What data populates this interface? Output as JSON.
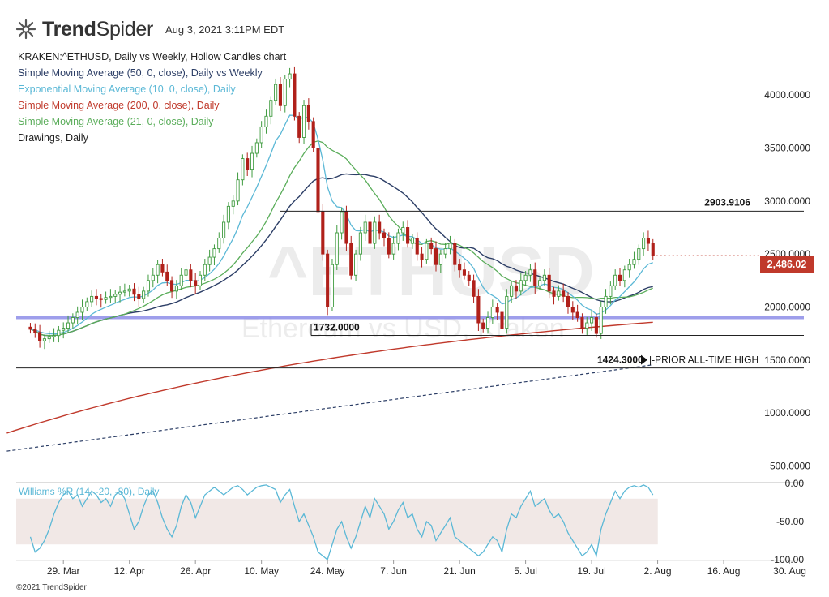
{
  "header": {
    "brand_bold": "Trend",
    "brand_light": "Spider",
    "timestamp": "Aug 3, 2021 3:11PM EDT"
  },
  "legend": [
    {
      "text": "KRAKEN:^ETHUSD, Daily vs Weekly, Hollow Candles chart",
      "color": "#222222"
    },
    {
      "text": "Simple Moving Average (50, 0, close), Daily vs Weekly",
      "color": "#2c3e66"
    },
    {
      "text": "Exponential Moving Average (10, 0, close), Daily",
      "color": "#5bb8d6"
    },
    {
      "text": "Simple Moving Average (200, 0, close), Daily",
      "color": "#c0392b"
    },
    {
      "text": "Simple Moving Average (21, 0, close), Daily",
      "color": "#5aad5a"
    },
    {
      "text": "Drawings, Daily",
      "color": "#222222"
    }
  ],
  "watermark": {
    "symbol": "^ETHUSD",
    "name": "Ethereum vs USD, Kraken"
  },
  "price_badge": "2,486.02",
  "oscillator_label": "Williams %R (14, -20, -80), Daily",
  "copyright": "©2021 TrendSpider",
  "colors": {
    "sma50": "#2c3e66",
    "ema10": "#5bb8d6",
    "sma200": "#c0392b",
    "sma21": "#5aad5a",
    "up": "#3f9b3f",
    "down": "#b0201a",
    "support": "#8e8ee8",
    "willr": "#5bb8d6"
  },
  "chart_data": {
    "type": "candlestick",
    "x_ticks": [
      "29. Mar",
      "12. Apr",
      "26. Apr",
      "10. May",
      "24. May",
      "7. Jun",
      "21. Jun",
      "5. Jul",
      "19. Jul",
      "2. Aug",
      "16. Aug",
      "30. Aug"
    ],
    "y_ticks": [
      "500.0000",
      "1000.0000",
      "1500.0000",
      "2000.0000",
      "2500.0000",
      "3000.0000",
      "3500.0000",
      "4000.0000"
    ],
    "y_tick_values": [
      500,
      1000,
      1500,
      2000,
      2500,
      3000,
      3500,
      4000
    ],
    "ylim": [
      350,
      4300
    ],
    "x_range": [
      "2021-03-19",
      "2021-09-02"
    ],
    "close": [
      1790,
      1760,
      1680,
      1700,
      1720,
      1730,
      1780,
      1800,
      1850,
      1900,
      1950,
      2000,
      2050,
      2100,
      2080,
      2070,
      2090,
      2100,
      2120,
      2140,
      2150,
      2170,
      2120,
      2080,
      2150,
      2250,
      2300,
      2400,
      2330,
      2250,
      2150,
      2200,
      2300,
      2350,
      2250,
      2200,
      2300,
      2400,
      2470,
      2550,
      2650,
      2800,
      2950,
      3000,
      3200,
      3400,
      3300,
      3450,
      3550,
      3700,
      3800,
      3950,
      4100,
      3900,
      4150,
      4200,
      3800,
      3600,
      3900,
      3750,
      3500,
      2900,
      2500,
      2000,
      2400,
      2700,
      2900,
      2600,
      2300,
      2500,
      2700,
      2800,
      2600,
      2800,
      2700,
      2650,
      2500,
      2600,
      2700,
      2750,
      2600,
      2650,
      2500,
      2450,
      2600,
      2550,
      2400,
      2500,
      2550,
      2600,
      2400,
      2350,
      2300,
      2250,
      2100,
      1850,
      1800,
      1900,
      2000,
      1950,
      1800,
      2100,
      2200,
      2150,
      2250,
      2300,
      2350,
      2200,
      2250,
      2300,
      2150,
      2100,
      2150,
      2100,
      2000,
      1950,
      1900,
      1800,
      1850,
      1900,
      1750,
      2000,
      2100,
      2200,
      2300,
      2250,
      2350,
      2400,
      2450,
      2550,
      2650,
      2600,
      2486
    ],
    "levels": [
      {
        "value": 2903.9106,
        "label": "2903.9106"
      },
      {
        "value": 1732.0,
        "label": "1732.0000"
      },
      {
        "value": 1424.3,
        "label": "1424.3000",
        "note": "PRIOR ALL-TIME HIGH"
      },
      {
        "value": 1900,
        "label": "",
        "style": "support-band"
      }
    ],
    "williams_r": {
      "label": "Williams %R (14, -20, -80), Daily",
      "y_ticks": [
        "0.00",
        "-50.00",
        "-100.00"
      ],
      "ylim": [
        -100,
        0
      ],
      "band": [
        -80,
        -20
      ],
      "values": [
        -70,
        -90,
        -85,
        -75,
        -60,
        -40,
        -25,
        -15,
        -10,
        -20,
        -15,
        -30,
        -20,
        -10,
        -15,
        -25,
        -20,
        -30,
        -15,
        -10,
        -20,
        -40,
        -60,
        -50,
        -30,
        -15,
        -10,
        -25,
        -45,
        -60,
        -70,
        -55,
        -30,
        -15,
        -25,
        -45,
        -30,
        -15,
        -10,
        -5,
        -10,
        -15,
        -10,
        -5,
        -3,
        -8,
        -15,
        -10,
        -5,
        -3,
        -2,
        -5,
        -8,
        -25,
        -15,
        -8,
        -30,
        -50,
        -40,
        -55,
        -70,
        -90,
        -95,
        -100,
        -80,
        -60,
        -50,
        -70,
        -85,
        -70,
        -50,
        -30,
        -45,
        -20,
        -30,
        -40,
        -60,
        -50,
        -35,
        -25,
        -45,
        -40,
        -60,
        -70,
        -50,
        -55,
        -75,
        -65,
        -55,
        -45,
        -70,
        -75,
        -80,
        -85,
        -90,
        -95,
        -90,
        -80,
        -70,
        -75,
        -90,
        -60,
        -40,
        -45,
        -30,
        -20,
        -10,
        -30,
        -25,
        -20,
        -35,
        -45,
        -40,
        -50,
        -65,
        -75,
        -85,
        -95,
        -90,
        -80,
        -95,
        -60,
        -40,
        -25,
        -10,
        -20,
        -10,
        -5,
        -3,
        -5,
        -2,
        -5,
        -15
      ]
    }
  }
}
